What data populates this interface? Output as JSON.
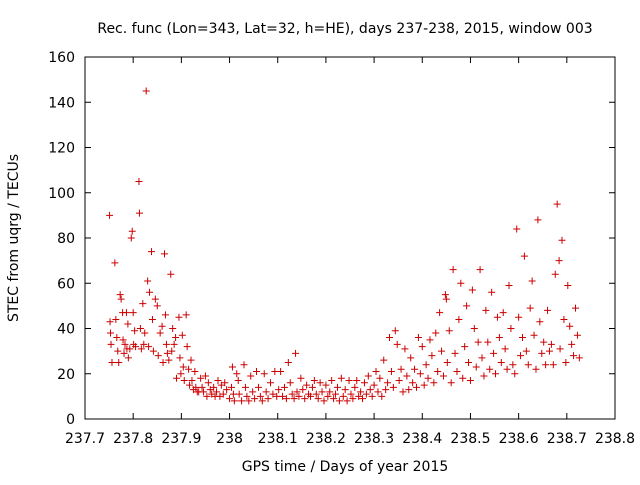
{
  "chart_data": {
    "type": "scatter",
    "title": "Rec. func (Lon=343, Lat=32, h=HE), days 237-238, 2015, window 003",
    "xlabel": "GPS time / Days of year 2015",
    "ylabel": "STEC from uqrg / TECUs",
    "xlim": [
      237.7,
      238.8
    ],
    "ylim": [
      0,
      160
    ],
    "xticks": [
      "237.7",
      "237.8",
      "237.9",
      "238",
      "238.1",
      "238.2",
      "238.3",
      "238.4",
      "238.5",
      "238.6",
      "238.7",
      "238.8"
    ],
    "yticks": [
      "0",
      "20",
      "40",
      "60",
      "80",
      "100",
      "120",
      "140",
      "160"
    ],
    "grid": false,
    "legend": "none",
    "marker": "plus",
    "series_color": "#cc0000",
    "points": [
      [
        237.751,
        90
      ],
      [
        237.752,
        43
      ],
      [
        237.753,
        38
      ],
      [
        237.754,
        33
      ],
      [
        237.756,
        25
      ],
      [
        237.762,
        69
      ],
      [
        237.764,
        44
      ],
      [
        237.766,
        36
      ],
      [
        237.768,
        30
      ],
      [
        237.77,
        25
      ],
      [
        237.773,
        55
      ],
      [
        237.775,
        53
      ],
      [
        237.778,
        47
      ],
      [
        237.779,
        35
      ],
      [
        237.781,
        29
      ],
      [
        237.783,
        33
      ],
      [
        237.786,
        47
      ],
      [
        237.787,
        31
      ],
      [
        237.789,
        42
      ],
      [
        237.79,
        27
      ],
      [
        237.793,
        31
      ],
      [
        237.796,
        80
      ],
      [
        237.798,
        83
      ],
      [
        237.8,
        47
      ],
      [
        237.801,
        33
      ],
      [
        237.803,
        39
      ],
      [
        237.805,
        32
      ],
      [
        237.812,
        105
      ],
      [
        237.813,
        91
      ],
      [
        237.815,
        40
      ],
      [
        237.817,
        31
      ],
      [
        237.82,
        51
      ],
      [
        237.822,
        33
      ],
      [
        237.824,
        38
      ],
      [
        237.827,
        145
      ],
      [
        237.83,
        61
      ],
      [
        237.832,
        32
      ],
      [
        237.834,
        56
      ],
      [
        237.838,
        74
      ],
      [
        237.84,
        44
      ],
      [
        237.842,
        30
      ],
      [
        237.846,
        53
      ],
      [
        237.85,
        50
      ],
      [
        237.852,
        28
      ],
      [
        237.856,
        38
      ],
      [
        237.86,
        41
      ],
      [
        237.862,
        25
      ],
      [
        237.865,
        73
      ],
      [
        237.867,
        46
      ],
      [
        237.869,
        33
      ],
      [
        237.871,
        29
      ],
      [
        237.874,
        26
      ],
      [
        237.878,
        64
      ],
      [
        237.88,
        30
      ],
      [
        237.882,
        40
      ],
      [
        237.885,
        33
      ],
      [
        237.888,
        36
      ],
      [
        237.89,
        18
      ],
      [
        237.895,
        45
      ],
      [
        237.897,
        27
      ],
      [
        237.899,
        20
      ],
      [
        237.902,
        37
      ],
      [
        237.904,
        23
      ],
      [
        237.906,
        17
      ],
      [
        237.91,
        46
      ],
      [
        237.912,
        32
      ],
      [
        237.915,
        22
      ],
      [
        237.917,
        15
      ],
      [
        237.92,
        26
      ],
      [
        237.922,
        17
      ],
      [
        237.925,
        13
      ],
      [
        237.928,
        21
      ],
      [
        237.93,
        14
      ],
      [
        237.933,
        12
      ],
      [
        237.936,
        12
      ],
      [
        237.94,
        18
      ],
      [
        237.943,
        14
      ],
      [
        237.946,
        12
      ],
      [
        237.95,
        19
      ],
      [
        237.953,
        10
      ],
      [
        237.956,
        16
      ],
      [
        237.96,
        13
      ],
      [
        237.963,
        11
      ],
      [
        237.967,
        14
      ],
      [
        237.97,
        10
      ],
      [
        237.973,
        12
      ],
      [
        237.976,
        17
      ],
      [
        237.98,
        10
      ],
      [
        237.983,
        15
      ],
      [
        237.987,
        11
      ],
      [
        237.99,
        16
      ],
      [
        237.994,
        13
      ],
      [
        238.0,
        9
      ],
      [
        238.004,
        14
      ],
      [
        238.006,
        23
      ],
      [
        238.008,
        11
      ],
      [
        238.01,
        8
      ],
      [
        238.015,
        20
      ],
      [
        238.018,
        17
      ],
      [
        238.02,
        11
      ],
      [
        238.025,
        8
      ],
      [
        238.03,
        24
      ],
      [
        238.033,
        14
      ],
      [
        238.036,
        10
      ],
      [
        238.04,
        8
      ],
      [
        238.044,
        19
      ],
      [
        238.048,
        12
      ],
      [
        238.052,
        9
      ],
      [
        238.056,
        21
      ],
      [
        238.06,
        14
      ],
      [
        238.064,
        10
      ],
      [
        238.068,
        8
      ],
      [
        238.072,
        20
      ],
      [
        238.076,
        12
      ],
      [
        238.08,
        9
      ],
      [
        238.085,
        16
      ],
      [
        238.09,
        11
      ],
      [
        238.094,
        21
      ],
      [
        238.098,
        10
      ],
      [
        238.102,
        13
      ],
      [
        238.106,
        21
      ],
      [
        238.11,
        10
      ],
      [
        238.114,
        14
      ],
      [
        238.118,
        9
      ],
      [
        238.122,
        25
      ],
      [
        238.126,
        16
      ],
      [
        238.13,
        11
      ],
      [
        238.134,
        9
      ],
      [
        238.137,
        29
      ],
      [
        238.14,
        12
      ],
      [
        238.144,
        10
      ],
      [
        238.148,
        18
      ],
      [
        238.152,
        13
      ],
      [
        238.156,
        9
      ],
      [
        238.16,
        15
      ],
      [
        238.164,
        11
      ],
      [
        238.168,
        10
      ],
      [
        238.172,
        14
      ],
      [
        238.176,
        17
      ],
      [
        238.18,
        11
      ],
      [
        238.184,
        9
      ],
      [
        238.188,
        16
      ],
      [
        238.192,
        12
      ],
      [
        238.196,
        8
      ],
      [
        238.2,
        15
      ],
      [
        238.204,
        10
      ],
      [
        238.208,
        12
      ],
      [
        238.212,
        17
      ],
      [
        238.216,
        9
      ],
      [
        238.22,
        11
      ],
      [
        238.224,
        14
      ],
      [
        238.228,
        8
      ],
      [
        238.232,
        18
      ],
      [
        238.236,
        10
      ],
      [
        238.24,
        13
      ],
      [
        238.244,
        8
      ],
      [
        238.248,
        17
      ],
      [
        238.252,
        11
      ],
      [
        238.256,
        9
      ],
      [
        238.26,
        14
      ],
      [
        238.264,
        17
      ],
      [
        238.268,
        10
      ],
      [
        238.272,
        12
      ],
      [
        238.276,
        9
      ],
      [
        238.28,
        16
      ],
      [
        238.284,
        11
      ],
      [
        238.288,
        19
      ],
      [
        238.292,
        13
      ],
      [
        238.296,
        10
      ],
      [
        238.3,
        15
      ],
      [
        238.304,
        21
      ],
      [
        238.308,
        12
      ],
      [
        238.312,
        18
      ],
      [
        238.316,
        10
      ],
      [
        238.32,
        26
      ],
      [
        238.324,
        13
      ],
      [
        238.328,
        16
      ],
      [
        238.332,
        36
      ],
      [
        238.336,
        21
      ],
      [
        238.34,
        14
      ],
      [
        238.344,
        39
      ],
      [
        238.348,
        33
      ],
      [
        238.352,
        17
      ],
      [
        238.356,
        22
      ],
      [
        238.36,
        12
      ],
      [
        238.364,
        31
      ],
      [
        238.368,
        19
      ],
      [
        238.372,
        13
      ],
      [
        238.376,
        27
      ],
      [
        238.38,
        16
      ],
      [
        238.384,
        22
      ],
      [
        238.388,
        14
      ],
      [
        238.392,
        36
      ],
      [
        238.396,
        20
      ],
      [
        238.4,
        32
      ],
      [
        238.404,
        15
      ],
      [
        238.408,
        24
      ],
      [
        238.412,
        18
      ],
      [
        238.416,
        35
      ],
      [
        238.42,
        28
      ],
      [
        238.424,
        16
      ],
      [
        238.428,
        38
      ],
      [
        238.432,
        21
      ],
      [
        238.436,
        47
      ],
      [
        238.44,
        30
      ],
      [
        238.444,
        19
      ],
      [
        238.448,
        55
      ],
      [
        238.45,
        53
      ],
      [
        238.452,
        25
      ],
      [
        238.456,
        39
      ],
      [
        238.46,
        16
      ],
      [
        238.464,
        66
      ],
      [
        238.468,
        29
      ],
      [
        238.472,
        21
      ],
      [
        238.476,
        44
      ],
      [
        238.48,
        60
      ],
      [
        238.484,
        18
      ],
      [
        238.488,
        32
      ],
      [
        238.492,
        50
      ],
      [
        238.496,
        25
      ],
      [
        238.5,
        17
      ],
      [
        238.504,
        57
      ],
      [
        238.508,
        40
      ],
      [
        238.512,
        23
      ],
      [
        238.516,
        34
      ],
      [
        238.52,
        66
      ],
      [
        238.524,
        27
      ],
      [
        238.528,
        19
      ],
      [
        238.532,
        48
      ],
      [
        238.536,
        34
      ],
      [
        238.54,
        22
      ],
      [
        238.544,
        56
      ],
      [
        238.548,
        29
      ],
      [
        238.552,
        20
      ],
      [
        238.556,
        45
      ],
      [
        238.56,
        36
      ],
      [
        238.564,
        25
      ],
      [
        238.568,
        47
      ],
      [
        238.572,
        31
      ],
      [
        238.576,
        22
      ],
      [
        238.58,
        59
      ],
      [
        238.584,
        40
      ],
      [
        238.588,
        24
      ],
      [
        238.592,
        20
      ],
      [
        238.596,
        84
      ],
      [
        238.6,
        45
      ],
      [
        238.604,
        28
      ],
      [
        238.608,
        36
      ],
      [
        238.612,
        72
      ],
      [
        238.616,
        30
      ],
      [
        238.62,
        24
      ],
      [
        238.624,
        49
      ],
      [
        238.628,
        61
      ],
      [
        238.632,
        37
      ],
      [
        238.636,
        22
      ],
      [
        238.64,
        88
      ],
      [
        238.644,
        43
      ],
      [
        238.648,
        29
      ],
      [
        238.652,
        34
      ],
      [
        238.656,
        24
      ],
      [
        238.66,
        48
      ],
      [
        238.664,
        30
      ],
      [
        238.668,
        33
      ],
      [
        238.672,
        24
      ],
      [
        238.676,
        64
      ],
      [
        238.68,
        95
      ],
      [
        238.684,
        70
      ],
      [
        238.686,
        31
      ],
      [
        238.69,
        79
      ],
      [
        238.694,
        44
      ],
      [
        238.698,
        25
      ],
      [
        238.702,
        59
      ],
      [
        238.706,
        41
      ],
      [
        238.71,
        33
      ],
      [
        238.714,
        28
      ],
      [
        238.718,
        49
      ],
      [
        238.722,
        37
      ],
      [
        238.726,
        27
      ]
    ]
  }
}
